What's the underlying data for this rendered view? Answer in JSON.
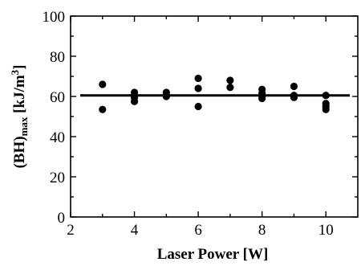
{
  "chart_data": {
    "type": "scatter",
    "xlabel": "Laser Power [W]",
    "ylabel": "(BH)max [kJ/m3]",
    "ylabel_parts": {
      "base": "(BH)",
      "subscript": "max",
      "unit": " [kJ/m",
      "superscript": "3",
      "close": "]"
    },
    "xlim": [
      2,
      11
    ],
    "ylim": [
      0,
      100
    ],
    "x_ticks": [
      2,
      4,
      6,
      8,
      10
    ],
    "y_ticks": [
      0,
      20,
      40,
      60,
      80,
      100
    ],
    "x_tick_labels": [
      "2",
      "4",
      "6",
      "8",
      "10"
    ],
    "y_tick_labels": [
      "0",
      "20",
      "40",
      "60",
      "80",
      "100"
    ],
    "grid": false,
    "series": [
      {
        "points": [
          [
            3,
            66
          ],
          [
            3,
            53.5
          ],
          [
            4,
            62
          ],
          [
            4,
            59.5
          ],
          [
            4,
            57.5
          ],
          [
            5,
            62
          ],
          [
            5,
            60
          ],
          [
            6,
            69
          ],
          [
            6,
            64
          ],
          [
            6,
            55
          ],
          [
            7,
            68
          ],
          [
            7,
            64.5
          ],
          [
            8,
            63.5
          ],
          [
            8,
            61.5
          ],
          [
            8,
            60
          ],
          [
            8,
            59
          ],
          [
            9,
            65
          ],
          [
            9,
            60.5
          ],
          [
            9,
            59.5
          ],
          [
            10,
            60.5
          ],
          [
            10,
            56.5
          ],
          [
            10,
            55
          ],
          [
            10,
            53.5
          ]
        ]
      }
    ],
    "fit_line": {
      "y": 60.5,
      "x_range": [
        2.3,
        10.75
      ]
    }
  }
}
